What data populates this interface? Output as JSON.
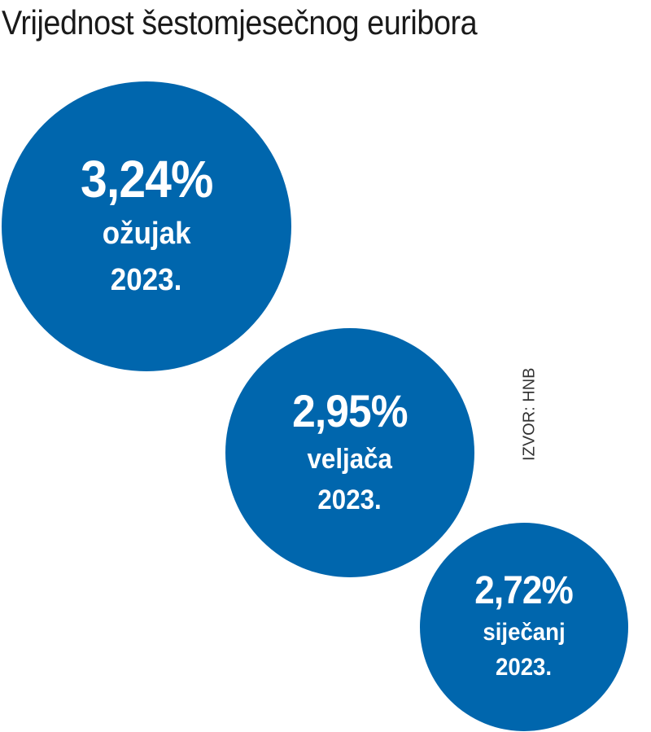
{
  "title": "Vrijednost šestomjesečnog euribora",
  "source": "IZVOR: HNB",
  "colors": {
    "bubble": "#0066ad",
    "title_text": "#1a1a1a",
    "bubble_text": "#ffffff"
  },
  "chart_data": {
    "type": "bubble",
    "title": "Vrijednost šestomjesečnog euribora",
    "unit": "%",
    "points": [
      {
        "label": "3,24%",
        "value": 3.24,
        "month": "ožujak",
        "year": "2023."
      },
      {
        "label": "2,95%",
        "value": 2.95,
        "month": "veljača",
        "year": "2023."
      },
      {
        "label": "2,72%",
        "value": 2.72,
        "month": "siječanj",
        "year": "2023."
      }
    ]
  }
}
